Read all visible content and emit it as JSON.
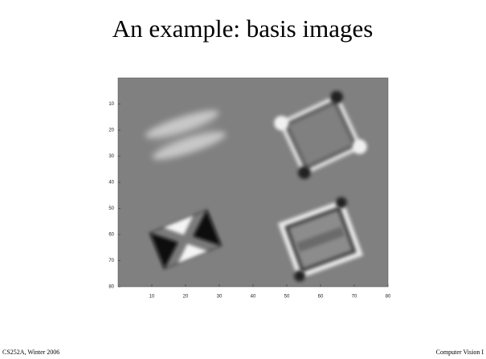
{
  "title": "An example: basis images",
  "footer_left": "CS252A, Winter 2006",
  "footer_right": "Computer Vision I",
  "figure": {
    "xlim": [
      0,
      80
    ],
    "ylim": [
      0,
      80
    ],
    "xticks": [
      10,
      20,
      30,
      40,
      50,
      60,
      70,
      80
    ],
    "yticks": [
      10,
      20,
      30,
      40,
      50,
      60,
      70,
      80
    ]
  }
}
